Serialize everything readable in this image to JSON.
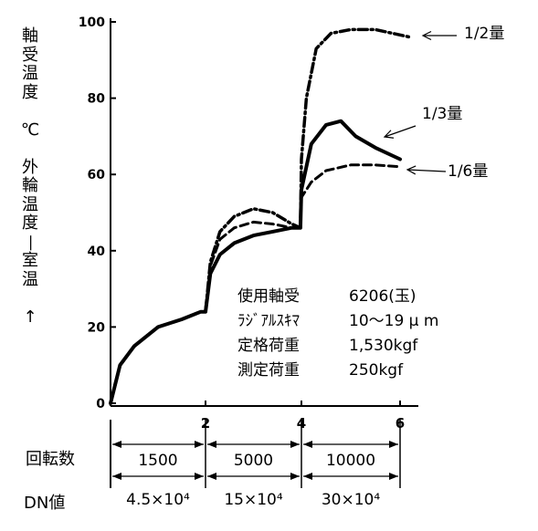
{
  "chart_data": {
    "type": "line",
    "ylabel_chars": [
      "軸",
      "受",
      "温",
      "度",
      "",
      "℃",
      "",
      "外",
      "輪",
      "温",
      "度",
      "—",
      "室",
      "温",
      "",
      "↑"
    ],
    "yticks": [
      0,
      20,
      40,
      60,
      80,
      100
    ],
    "ylim": [
      0,
      100
    ],
    "xticks": [
      2,
      4,
      6
    ],
    "xlim": [
      0,
      6.2
    ],
    "series": [
      {
        "name": "1/2量",
        "style": "dashdot",
        "x": [
          0,
          0.2,
          0.5,
          1.0,
          1.5,
          1.9,
          2.0,
          2.1,
          2.3,
          2.6,
          3.0,
          3.4,
          3.8,
          3.98,
          4.0,
          4.1,
          4.3,
          4.6,
          5.0,
          5.5,
          6.2
        ],
        "y": [
          0,
          10,
          15,
          20,
          22,
          24,
          24,
          37,
          45,
          49,
          51,
          50,
          47,
          46,
          64,
          80,
          93,
          97,
          98,
          98,
          96
        ]
      },
      {
        "name": "1/3量",
        "style": "solid",
        "x": [
          0,
          0.2,
          0.5,
          1.0,
          1.5,
          1.9,
          2.0,
          2.1,
          2.3,
          2.6,
          3.0,
          3.4,
          3.8,
          3.98,
          4.0,
          4.2,
          4.5,
          4.8,
          5.1,
          5.5,
          6.0
        ],
        "y": [
          0,
          10,
          15,
          20,
          22,
          24,
          24,
          34,
          39,
          42,
          44,
          45,
          46,
          46,
          56,
          68,
          73,
          74,
          70,
          67,
          64
        ]
      },
      {
        "name": "1/6量",
        "style": "dashed",
        "x": [
          0,
          0.2,
          0.5,
          1.0,
          1.5,
          1.9,
          2.0,
          2.1,
          2.3,
          2.6,
          3.0,
          3.4,
          3.8,
          3.98,
          4.0,
          4.2,
          4.5,
          5.0,
          5.5,
          6.0
        ],
        "y": [
          0,
          10,
          15,
          20,
          22,
          24,
          24,
          36,
          43,
          46,
          47.5,
          47,
          46,
          46,
          54,
          58,
          61,
          62.5,
          62.5,
          62
        ]
      }
    ],
    "legend_arrows": [
      "1/2量",
      "1/3量",
      "1/6量"
    ],
    "notes": [
      {
        "label": "使用軸受",
        "value": "6206(玉)"
      },
      {
        "label": "ﾗｼﾞｱﾙｽｷﾏ",
        "value": "10～19 μ m"
      },
      {
        "label": "定格荷重",
        "value": "1,530kgf"
      },
      {
        "label": "測定荷重",
        "value": "250kgf"
      }
    ],
    "rotation_label": "回転数",
    "rotation_values": [
      "1500",
      "5000",
      "10000"
    ],
    "dn_label": "DN値",
    "dn_values": [
      "4.5×10⁴",
      "15×10⁴",
      "30×10⁴"
    ],
    "grid": false
  }
}
